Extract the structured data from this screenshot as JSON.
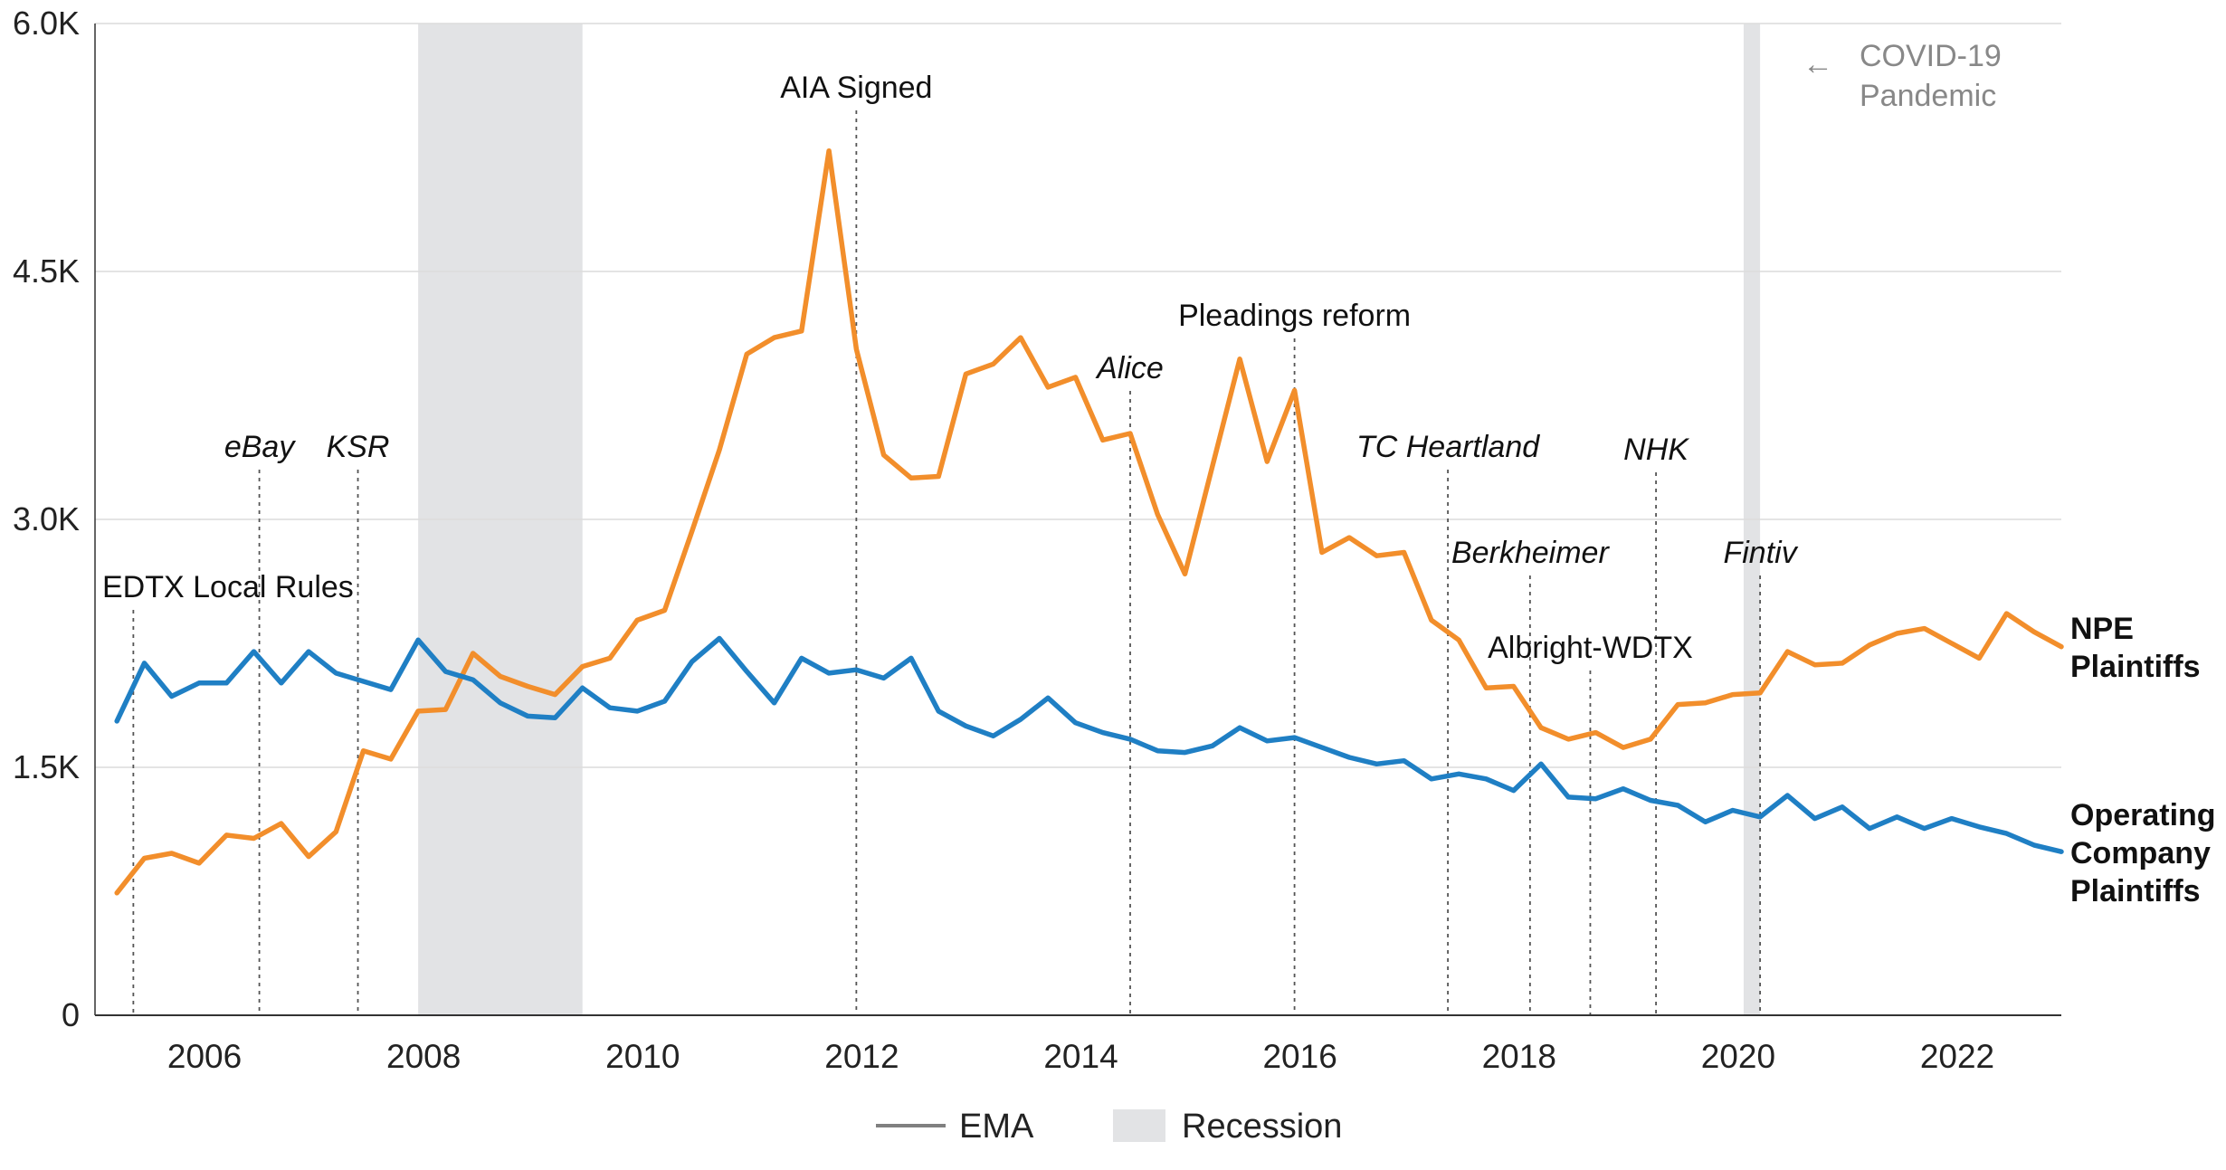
{
  "chart_data": {
    "type": "line",
    "x_range": [
      2005.0,
      2022.95
    ],
    "ylim": [
      0,
      6000
    ],
    "y_ticks": [
      {
        "value": 0,
        "label": "0"
      },
      {
        "value": 1500,
        "label": "1.5K"
      },
      {
        "value": 3000,
        "label": "3.0K"
      },
      {
        "value": 4500,
        "label": "4.5K"
      },
      {
        "value": 6000,
        "label": "6.0K"
      }
    ],
    "x_ticks": [
      {
        "value": 2006,
        "label": "2006"
      },
      {
        "value": 2008,
        "label": "2008"
      },
      {
        "value": 2010,
        "label": "2010"
      },
      {
        "value": 2012,
        "label": "2012"
      },
      {
        "value": 2014,
        "label": "2014"
      },
      {
        "value": 2016,
        "label": "2016"
      },
      {
        "value": 2018,
        "label": "2018"
      },
      {
        "value": 2020,
        "label": "2020"
      },
      {
        "value": 2022,
        "label": "2022"
      }
    ],
    "grid": true,
    "series": [
      {
        "name": "NPE Plaintiffs",
        "color": "#f28e2b",
        "x": [
          2005.2,
          2005.45,
          2005.7,
          2005.95,
          2006.2,
          2006.45,
          2006.7,
          2006.95,
          2007.2,
          2007.45,
          2007.7,
          2007.95,
          2008.2,
          2008.45,
          2008.7,
          2008.95,
          2009.2,
          2009.45,
          2009.7,
          2009.95,
          2010.2,
          2010.45,
          2010.7,
          2010.95,
          2011.2,
          2011.45,
          2011.7,
          2011.95,
          2012.2,
          2012.45,
          2012.7,
          2012.95,
          2013.2,
          2013.45,
          2013.7,
          2013.95,
          2014.2,
          2014.45,
          2014.7,
          2014.95,
          2015.2,
          2015.45,
          2015.7,
          2015.95,
          2016.2,
          2016.45,
          2016.7,
          2016.95,
          2017.2,
          2017.45,
          2017.7,
          2017.95,
          2018.2,
          2018.45,
          2018.7,
          2018.95,
          2019.2,
          2019.45,
          2019.7,
          2019.95,
          2020.2,
          2020.45,
          2020.7,
          2020.95,
          2021.2,
          2021.45,
          2021.7,
          2021.95,
          2022.2,
          2022.45,
          2022.7,
          2022.95
        ],
        "y": [
          740,
          950,
          980,
          920,
          1090,
          1070,
          1160,
          960,
          1110,
          1600,
          1550,
          1840,
          1850,
          2190,
          2050,
          1990,
          1940,
          2110,
          2160,
          2390,
          2450,
          2930,
          3420,
          4000,
          4100,
          4140,
          5230,
          4030,
          3390,
          3250,
          3260,
          3880,
          3940,
          4100,
          3800,
          3860,
          3480,
          3520,
          3030,
          2670,
          3320,
          3970,
          3350,
          3780,
          2800,
          2890,
          2780,
          2800,
          2390,
          2270,
          1980,
          1990,
          1740,
          1670,
          1710,
          1620,
          1670,
          1880,
          1890,
          1940,
          1950,
          2200,
          2120,
          2130,
          2240,
          2310,
          2340,
          2250,
          2160,
          2430,
          2320,
          2230
        ]
      },
      {
        "name": "Operating Company Plaintiffs",
        "color": "#1f7fc4",
        "x": [
          2005.2,
          2005.45,
          2005.7,
          2005.95,
          2006.2,
          2006.45,
          2006.7,
          2006.95,
          2007.2,
          2007.45,
          2007.7,
          2007.95,
          2008.2,
          2008.45,
          2008.7,
          2008.95,
          2009.2,
          2009.45,
          2009.7,
          2009.95,
          2010.2,
          2010.45,
          2010.7,
          2010.95,
          2011.2,
          2011.45,
          2011.7,
          2011.95,
          2012.2,
          2012.45,
          2012.7,
          2012.95,
          2013.2,
          2013.45,
          2013.7,
          2013.95,
          2014.2,
          2014.45,
          2014.7,
          2014.95,
          2015.2,
          2015.45,
          2015.7,
          2015.95,
          2016.2,
          2016.45,
          2016.7,
          2016.95,
          2017.2,
          2017.45,
          2017.7,
          2017.95,
          2018.2,
          2018.45,
          2018.7,
          2018.95,
          2019.2,
          2019.45,
          2019.7,
          2019.95,
          2020.2,
          2020.45,
          2020.7,
          2020.95,
          2021.2,
          2021.45,
          2021.7,
          2021.95,
          2022.2,
          2022.45,
          2022.7,
          2022.95
        ],
        "y": [
          1780,
          2130,
          1930,
          2010,
          2010,
          2200,
          2010,
          2200,
          2070,
          2020,
          1970,
          2270,
          2080,
          2030,
          1890,
          1810,
          1800,
          1980,
          1860,
          1840,
          1900,
          2140,
          2280,
          2080,
          1890,
          2160,
          2070,
          2090,
          2040,
          2160,
          1840,
          1750,
          1690,
          1790,
          1920,
          1770,
          1710,
          1670,
          1600,
          1590,
          1630,
          1740,
          1660,
          1680,
          1620,
          1560,
          1520,
          1540,
          1430,
          1460,
          1430,
          1360,
          1520,
          1320,
          1310,
          1370,
          1300,
          1270,
          1170,
          1240,
          1200,
          1330,
          1190,
          1260,
          1130,
          1200,
          1130,
          1190,
          1140,
          1100,
          1030,
          990
        ]
      }
    ],
    "recessions": [
      {
        "start": 2007.95,
        "end": 2009.45
      },
      {
        "start": 2020.05,
        "end": 2020.2
      }
    ],
    "events": [
      {
        "x": 2005.35,
        "label": "EDTX Local Rules",
        "italic": false
      },
      {
        "x": 2006.5,
        "label": "eBay",
        "italic": true
      },
      {
        "x": 2007.4,
        "label": "KSR",
        "italic": true
      },
      {
        "x": 2011.95,
        "label": "AIA Signed",
        "italic": false
      },
      {
        "x": 2014.45,
        "label": "Alice",
        "italic": true
      },
      {
        "x": 2015.95,
        "label": "Pleadings reform",
        "italic": false
      },
      {
        "x": 2017.35,
        "label": "TC Heartland",
        "italic": true
      },
      {
        "x": 2018.1,
        "label": "Berkheimer",
        "italic": true
      },
      {
        "x": 2018.65,
        "label": "Albright-WDTX",
        "italic": false
      },
      {
        "x": 2019.25,
        "label": "NHK",
        "italic": true
      },
      {
        "x": 2020.2,
        "label": "Fintiv",
        "italic": true
      }
    ],
    "covid_annotation": {
      "line1": "COVID-19",
      "line2": "Pandemic",
      "arrow": "←"
    },
    "end_labels": {
      "npe": [
        "NPE",
        "Plaintiffs"
      ],
      "operating": [
        "Operating",
        "Company",
        "Plaintiffs"
      ]
    },
    "legend": {
      "position": "bottom-center",
      "items": [
        {
          "label": "EMA",
          "type": "line",
          "color": "#808080"
        },
        {
          "label": "Recession",
          "type": "box",
          "color": "#e2e3e5"
        }
      ]
    }
  }
}
